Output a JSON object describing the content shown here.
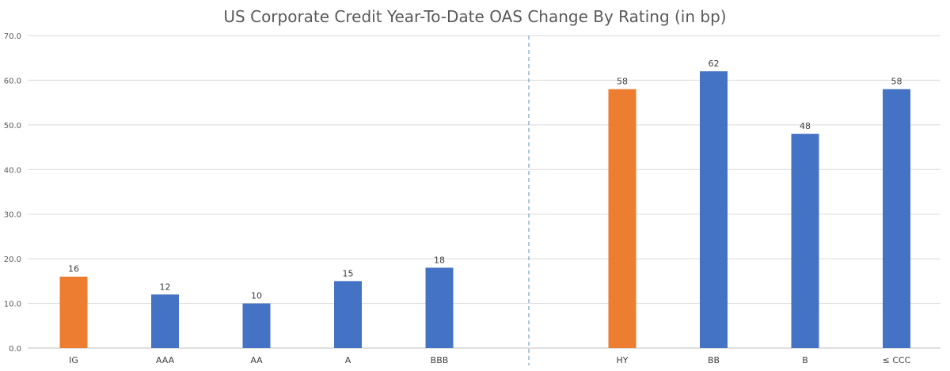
{
  "chart_data": {
    "type": "bar",
    "title": "US Corporate Credit Year-To-Date OAS Change By Rating (in bp)",
    "xlabel": "",
    "ylabel": "",
    "ylim": [
      0,
      70
    ],
    "yticks": [
      "0.0",
      "10.0",
      "20.0",
      "30.0",
      "40.0",
      "50.0",
      "60.0",
      "70.0"
    ],
    "grid": true,
    "groups": [
      {
        "categories": [
          "IG",
          "AAA",
          "AA",
          "A",
          "BBB"
        ],
        "values": [
          16,
          12,
          10,
          15,
          18
        ],
        "colors": [
          "#ED7D31",
          "#4472C4",
          "#4472C4",
          "#4472C4",
          "#4472C4"
        ]
      },
      {
        "categories": [
          "HY",
          "BB",
          "B",
          "≤ CCC"
        ],
        "values": [
          58,
          62,
          48,
          58
        ],
        "colors": [
          "#ED7D31",
          "#4472C4",
          "#4472C4",
          "#4472C4"
        ]
      }
    ],
    "data_labels": true,
    "group_separator": "dashed-vertical"
  }
}
